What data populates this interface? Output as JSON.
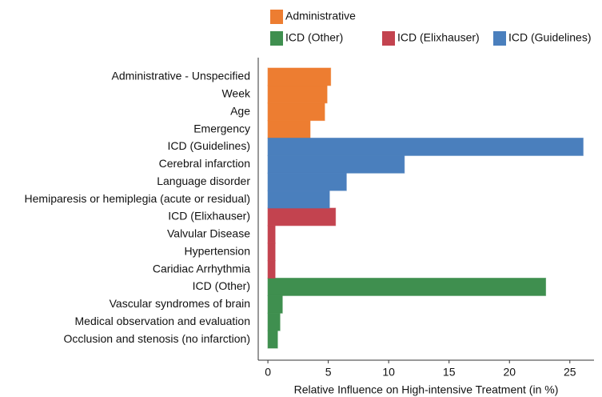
{
  "chart_data": {
    "type": "bar",
    "orientation": "horizontal",
    "x_label": "Relative Influence on High-intensive Treatment (in %)",
    "categories": [
      "Administrative - Unspecified",
      "Week",
      "Age",
      "Emergency",
      "ICD (Guidelines)",
      "Cerebral infarction",
      "Language disorder",
      "Hemiparesis or hemiplegia (acute or residual)",
      "ICD (Elixhauser)",
      "Valvular Disease",
      "Hypertension",
      "Caridiac Arrhythmia",
      "ICD (Other)",
      "Vascular syndromes of brain",
      "Medical observation and evaluation",
      "Occlusion and stenosis (no infarction)"
    ],
    "series": [
      {
        "name": "Administrative",
        "color": "#ed7d31",
        "values": [
          5.2,
          4.9,
          4.7,
          3.5,
          null,
          null,
          null,
          null,
          null,
          null,
          null,
          null,
          null,
          null,
          null,
          null
        ]
      },
      {
        "name": "ICD (Other)",
        "color": "#3f8f4f",
        "values": [
          null,
          null,
          null,
          null,
          null,
          null,
          null,
          null,
          null,
          null,
          null,
          null,
          23.0,
          1.2,
          1.0,
          0.8
        ]
      },
      {
        "name": "ICD (Elixhauser)",
        "color": "#c3434f",
        "values": [
          null,
          null,
          null,
          null,
          null,
          null,
          null,
          null,
          5.6,
          0.6,
          0.6,
          0.6,
          null,
          null,
          null,
          null
        ]
      },
      {
        "name": "ICD  (Guidelines)",
        "color": "#4a7fbd",
        "values": [
          null,
          null,
          null,
          null,
          26.1,
          11.3,
          6.5,
          5.1,
          null,
          null,
          null,
          null,
          null,
          null,
          null,
          null
        ]
      }
    ],
    "xlim": [
      -0.8,
      27
    ],
    "xticks": [
      0,
      5,
      10,
      15,
      20,
      25
    ]
  }
}
